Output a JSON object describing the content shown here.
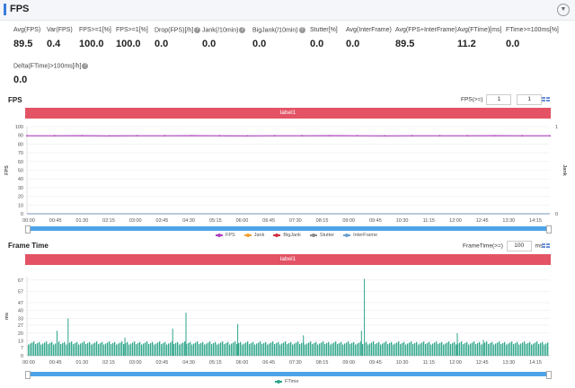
{
  "header": {
    "title": "FPS"
  },
  "metrics_row1": [
    {
      "label": "Avg(FPS)",
      "value": "89.5",
      "help": false
    },
    {
      "label": "Var(FPS)",
      "value": "0.4",
      "help": false
    },
    {
      "label": "FPS>=1[%]",
      "value": "100.0",
      "help": false
    },
    {
      "label": "FPS>=1[%]",
      "value": "100.0",
      "help": false
    },
    {
      "label": "Drop(FPS)[/h]",
      "value": "0.0",
      "help": true
    },
    {
      "label": "Jank(/10min)",
      "value": "0.0",
      "help": true
    },
    {
      "label": "BigJank(/10min)",
      "value": "0.0",
      "help": true
    },
    {
      "label": "Stutter[%]",
      "value": "0.0",
      "help": false
    },
    {
      "label": "Avg(InterFrame)",
      "value": "0.0",
      "help": false
    },
    {
      "label": "Avg(FPS+InterFrame)",
      "value": "89.5",
      "help": false
    },
    {
      "label": "Avg(FTime)[ms]",
      "value": "11.2",
      "help": false
    },
    {
      "label": "FTime>=100ms[%]",
      "value": "0.0",
      "help": false
    }
  ],
  "metrics_row2": [
    {
      "label": "Delta(FTime)>100ms[/h]",
      "value": "0.0",
      "help": true
    }
  ],
  "fps_section": {
    "title": "FPS",
    "control_label": "FPS(>=)",
    "input1": "1",
    "input2": "1",
    "label_bar": "label1",
    "y_left_label": "FPS",
    "y_right_label": "Jank",
    "y_left_ticks": [
      "100",
      "90",
      "80",
      "70",
      "60",
      "50",
      "40",
      "30",
      "20",
      "10",
      "0"
    ],
    "y_right_ticks": [
      "1",
      "0"
    ],
    "x_ticks": [
      "00:00",
      "00:45",
      "01:30",
      "02:15",
      "03:00",
      "03:45",
      "04:30",
      "05:15",
      "06:00",
      "06:45",
      "07:30",
      "08:15",
      "09:00",
      "09:45",
      "10:30",
      "11:15",
      "12:00",
      "12:45",
      "13:30",
      "14:15"
    ],
    "legend": [
      {
        "name": "FPS",
        "color": "#b040c0"
      },
      {
        "name": "Jank",
        "color": "#f0a030"
      },
      {
        "name": "BigJank",
        "color": "#d03040"
      },
      {
        "name": "Stutter",
        "color": "#888888"
      },
      {
        "name": "InterFrame",
        "color": "#6aa0d0"
      }
    ]
  },
  "frametime_section": {
    "title": "Frame Time",
    "control_label": "FrameTime(>=)",
    "input": "100",
    "unit": "ms",
    "label_bar": "label1",
    "y_label": "ms",
    "y_ticks": [
      "67",
      "57",
      "47",
      "40",
      "33",
      "27",
      "20",
      "13",
      "7",
      "0"
    ],
    "x_ticks": [
      "00:00",
      "00:45",
      "01:30",
      "02:15",
      "03:00",
      "03:45",
      "04:30",
      "05:15",
      "06:00",
      "06:45",
      "07:30",
      "08:15",
      "09:00",
      "09:45",
      "10:30",
      "11:15",
      "12:00",
      "12:45",
      "13:30",
      "14:15"
    ],
    "legend": [
      {
        "name": "FTime",
        "color": "#2ea58a"
      }
    ]
  },
  "chart_data": [
    {
      "type": "line",
      "title": "FPS",
      "ylabel": "FPS",
      "ylim": [
        0,
        100
      ],
      "x": [
        "00:00",
        "00:45",
        "01:30",
        "02:15",
        "03:00",
        "03:45",
        "04:30",
        "05:15",
        "06:00",
        "06:45",
        "07:30",
        "08:15",
        "09:00",
        "09:45",
        "10:30",
        "11:15",
        "12:00",
        "12:45",
        "13:30",
        "14:15"
      ],
      "series": [
        {
          "name": "FPS",
          "values": [
            89.5,
            89.5,
            89.6,
            89.4,
            89.5,
            89.5,
            89.6,
            89.5,
            89.4,
            89.5,
            89.5,
            89.6,
            89.5,
            89.4,
            89.5,
            89.5,
            89.5,
            89.6,
            89.5,
            89.5
          ]
        },
        {
          "name": "Jank",
          "values": [
            0,
            0,
            0,
            0,
            0,
            0,
            0,
            0,
            0,
            0,
            0,
            0,
            0,
            0,
            0,
            0,
            0,
            0,
            0,
            0
          ]
        },
        {
          "name": "BigJank",
          "values": [
            0,
            0,
            0,
            0,
            0,
            0,
            0,
            0,
            0,
            0,
            0,
            0,
            0,
            0,
            0,
            0,
            0,
            0,
            0,
            0
          ]
        },
        {
          "name": "Stutter",
          "values": [
            0,
            0,
            0,
            0,
            0,
            0,
            0,
            0,
            0,
            0,
            0,
            0,
            0,
            0,
            0,
            0,
            0,
            0,
            0,
            0
          ]
        },
        {
          "name": "InterFrame",
          "values": [
            0,
            0,
            0,
            0,
            0,
            0,
            0,
            0,
            0,
            0,
            0,
            0,
            0,
            0,
            0,
            0,
            0,
            0,
            0,
            0
          ]
        }
      ]
    },
    {
      "type": "bar",
      "title": "Frame Time",
      "ylabel": "ms",
      "ylim": [
        0,
        70
      ],
      "x": [
        "00:00",
        "00:45",
        "01:30",
        "02:15",
        "03:00",
        "03:45",
        "04:30",
        "05:15",
        "06:00",
        "06:45",
        "07:30",
        "08:15",
        "09:00",
        "09:45",
        "10:30",
        "11:15",
        "12:00",
        "12:45",
        "13:30",
        "14:15"
      ],
      "baseline": 11.2,
      "spikes": [
        {
          "t": "00:51",
          "ms": 22
        },
        {
          "t": "01:10",
          "ms": 33
        },
        {
          "t": "02:48",
          "ms": 16
        },
        {
          "t": "04:10",
          "ms": 24
        },
        {
          "t": "04:33",
          "ms": 38
        },
        {
          "t": "06:02",
          "ms": 28
        },
        {
          "t": "07:55",
          "ms": 18
        },
        {
          "t": "09:35",
          "ms": 22
        },
        {
          "t": "09:40",
          "ms": 68
        },
        {
          "t": "12:20",
          "ms": 20
        },
        {
          "t": "13:05",
          "ms": 14
        }
      ],
      "series": [
        {
          "name": "FTime"
        }
      ]
    }
  ]
}
